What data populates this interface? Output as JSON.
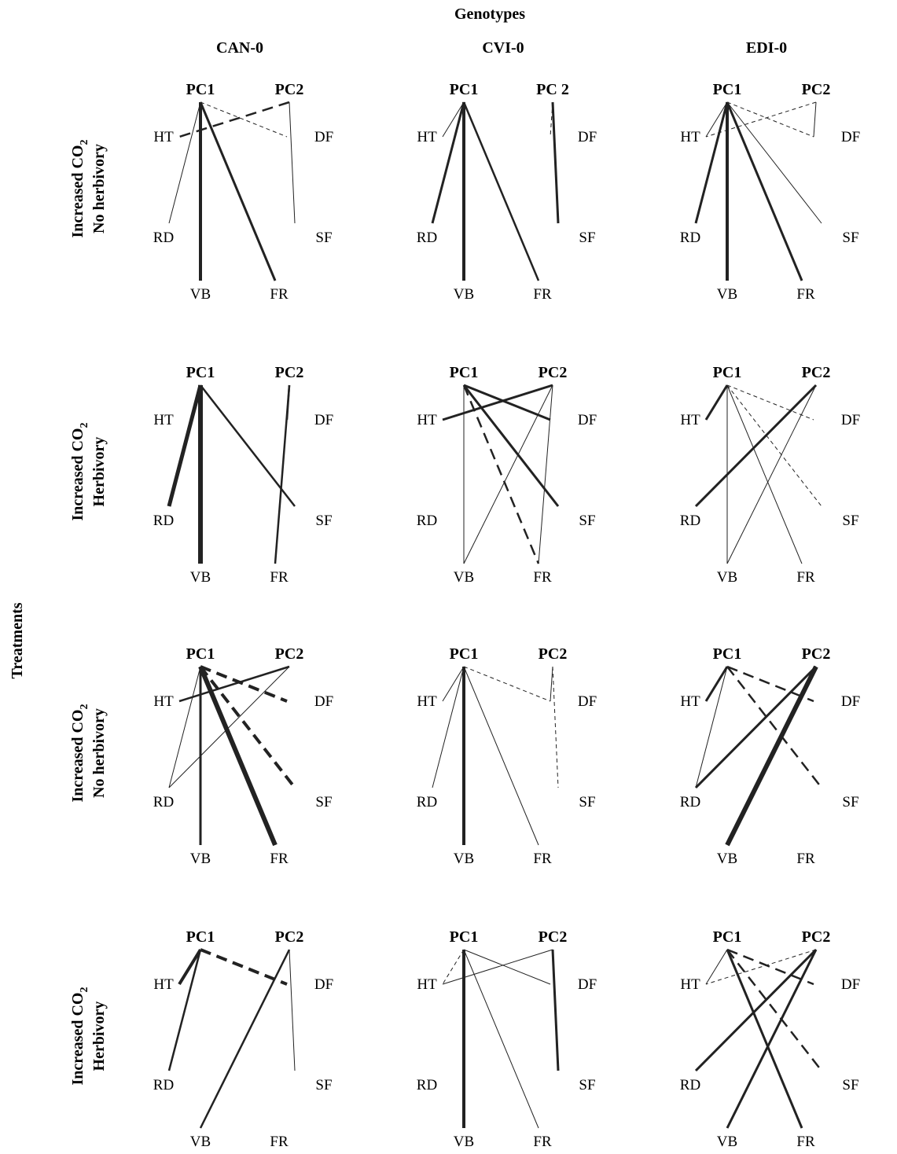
{
  "title": "Genotypes",
  "side_title": "Treatments",
  "genotypes": [
    "CAN-0",
    "CVI-0",
    "EDI-0"
  ],
  "treatments": [
    {
      "line1": "Increased CO",
      "sub": "2",
      "line2": "No herbivory"
    },
    {
      "line1": "Increased CO",
      "sub": "2",
      "line2": "Herbivory"
    },
    {
      "line1": "Increased CO",
      "sub": "2",
      "line2": "No herbivory"
    },
    {
      "line1": "Increased CO",
      "sub": "2",
      "line2": "Herbivory"
    }
  ],
  "colors": {
    "line": "#222222",
    "text": "#000000"
  },
  "panels": [
    {
      "pc_labels": [
        "PC1",
        "PC2"
      ],
      "traits": [
        "HT",
        "DF",
        "RD",
        "SF",
        "VB",
        "FR"
      ],
      "links": [
        {
          "pc": "PC1",
          "trait": "RD",
          "w": 1,
          "dash": false
        },
        {
          "pc": "PC1",
          "trait": "VB",
          "w": 4,
          "dash": false
        },
        {
          "pc": "PC1",
          "trait": "FR",
          "w": 3,
          "dash": false
        },
        {
          "pc": "PC1",
          "trait": "DF",
          "w": 1,
          "dash": true
        },
        {
          "pc": "PC2",
          "trait": "HT",
          "w": 2.5,
          "dash": true
        },
        {
          "pc": "PC2",
          "trait": "SF",
          "w": 1,
          "dash": false
        }
      ]
    },
    {
      "pc_labels": [
        "PC1",
        "PC 2"
      ],
      "traits": [
        "HT",
        "DF",
        "RD",
        "SF",
        "VB",
        "FR"
      ],
      "links": [
        {
          "pc": "PC1",
          "trait": "HT",
          "w": 1,
          "dash": false
        },
        {
          "pc": "PC1",
          "trait": "RD",
          "w": 3,
          "dash": false
        },
        {
          "pc": "PC1",
          "trait": "VB",
          "w": 4,
          "dash": false
        },
        {
          "pc": "PC1",
          "trait": "FR",
          "w": 2.5,
          "dash": false
        },
        {
          "pc": "PC2",
          "trait": "DF",
          "w": 1,
          "dash": true
        },
        {
          "pc": "PC2",
          "trait": "SF",
          "w": 3,
          "dash": false
        }
      ]
    },
    {
      "pc_labels": [
        "PC1",
        "PC2"
      ],
      "traits": [
        "HT",
        "DF",
        "RD",
        "SF",
        "VB",
        "FR"
      ],
      "links": [
        {
          "pc": "PC1",
          "trait": "HT",
          "w": 1,
          "dash": false
        },
        {
          "pc": "PC1",
          "trait": "RD",
          "w": 3,
          "dash": false
        },
        {
          "pc": "PC1",
          "trait": "VB",
          "w": 4,
          "dash": false
        },
        {
          "pc": "PC1",
          "trait": "FR",
          "w": 3,
          "dash": false
        },
        {
          "pc": "PC1",
          "trait": "SF",
          "w": 1,
          "dash": false
        },
        {
          "pc": "PC1",
          "trait": "DF",
          "w": 1,
          "dash": true
        },
        {
          "pc": "PC2",
          "trait": "HT",
          "w": 1,
          "dash": true
        },
        {
          "pc": "PC2",
          "trait": "DF",
          "w": 1,
          "dash": false
        }
      ]
    },
    {
      "pc_labels": [
        "PC1",
        "PC2"
      ],
      "traits": [
        "HT",
        "DF",
        "RD",
        "SF",
        "VB",
        "FR"
      ],
      "links": [
        {
          "pc": "PC1",
          "trait": "RD",
          "w": 5,
          "dash": false
        },
        {
          "pc": "PC1",
          "trait": "VB",
          "w": 6,
          "dash": false
        },
        {
          "pc": "PC1",
          "trait": "SF",
          "w": 2.5,
          "dash": false
        },
        {
          "pc": "PC2",
          "trait": "DF",
          "w": 2.5,
          "dash": false
        },
        {
          "pc": "PC2",
          "trait": "FR",
          "w": 2.5,
          "dash": false
        }
      ]
    },
    {
      "pc_labels": [
        "PC1",
        "PC2"
      ],
      "traits": [
        "HT",
        "DF",
        "RD",
        "SF",
        "VB",
        "FR"
      ],
      "links": [
        {
          "pc": "PC1",
          "trait": "VB",
          "w": 1,
          "dash": false
        },
        {
          "pc": "PC1",
          "trait": "DF",
          "w": 3,
          "dash": false
        },
        {
          "pc": "PC1",
          "trait": "SF",
          "w": 3,
          "dash": false
        },
        {
          "pc": "PC1",
          "trait": "FR",
          "w": 2.5,
          "dash": true
        },
        {
          "pc": "PC2",
          "trait": "HT",
          "w": 3,
          "dash": false
        },
        {
          "pc": "PC2",
          "trait": "VB",
          "w": 1,
          "dash": false
        },
        {
          "pc": "PC2",
          "trait": "FR",
          "w": 1,
          "dash": false
        }
      ]
    },
    {
      "pc_labels": [
        "PC1",
        "PC2"
      ],
      "traits": [
        "HT",
        "DF",
        "RD",
        "SF",
        "VB",
        "FR"
      ],
      "links": [
        {
          "pc": "PC1",
          "trait": "HT",
          "w": 3,
          "dash": false
        },
        {
          "pc": "PC1",
          "trait": "VB",
          "w": 1,
          "dash": false
        },
        {
          "pc": "PC1",
          "trait": "FR",
          "w": 1,
          "dash": false
        },
        {
          "pc": "PC1",
          "trait": "DF",
          "w": 1,
          "dash": true
        },
        {
          "pc": "PC1",
          "trait": "SF",
          "w": 1,
          "dash": true
        },
        {
          "pc": "PC2",
          "trait": "RD",
          "w": 3,
          "dash": false
        },
        {
          "pc": "PC2",
          "trait": "VB",
          "w": 1,
          "dash": false
        }
      ]
    },
    {
      "pc_labels": [
        "PC1",
        "PC2"
      ],
      "traits": [
        "HT",
        "DF",
        "RD",
        "SF",
        "VB",
        "FR"
      ],
      "links": [
        {
          "pc": "PC1",
          "trait": "RD",
          "w": 1,
          "dash": false
        },
        {
          "pc": "PC1",
          "trait": "VB",
          "w": 3,
          "dash": false
        },
        {
          "pc": "PC1",
          "trait": "FR",
          "w": 6,
          "dash": false
        },
        {
          "pc": "PC1",
          "trait": "DF",
          "w": 4,
          "dash": true
        },
        {
          "pc": "PC1",
          "trait": "SF",
          "w": 4,
          "dash": true
        },
        {
          "pc": "PC2",
          "trait": "HT",
          "w": 2.5,
          "dash": false
        },
        {
          "pc": "PC2",
          "trait": "RD",
          "w": 1,
          "dash": false
        }
      ]
    },
    {
      "pc_labels": [
        "PC1",
        "PC2"
      ],
      "traits": [
        "HT",
        "DF",
        "RD",
        "SF",
        "VB",
        "FR"
      ],
      "links": [
        {
          "pc": "PC1",
          "trait": "HT",
          "w": 1,
          "dash": false
        },
        {
          "pc": "PC1",
          "trait": "RD",
          "w": 1,
          "dash": false
        },
        {
          "pc": "PC1",
          "trait": "VB",
          "w": 4,
          "dash": false
        },
        {
          "pc": "PC1",
          "trait": "FR",
          "w": 1,
          "dash": false
        },
        {
          "pc": "PC1",
          "trait": "DF",
          "w": 1,
          "dash": true
        },
        {
          "pc": "PC2",
          "trait": "DF",
          "w": 1,
          "dash": false
        },
        {
          "pc": "PC2",
          "trait": "SF",
          "w": 1,
          "dash": true
        }
      ]
    },
    {
      "pc_labels": [
        "PC1",
        "PC2"
      ],
      "traits": [
        "HT",
        "DF",
        "RD",
        "SF",
        "VB",
        "FR"
      ],
      "links": [
        {
          "pc": "PC1",
          "trait": "HT",
          "w": 3,
          "dash": false
        },
        {
          "pc": "PC1",
          "trait": "RD",
          "w": 1,
          "dash": false
        },
        {
          "pc": "PC1",
          "trait": "DF",
          "w": 2.5,
          "dash": true
        },
        {
          "pc": "PC1",
          "trait": "SF",
          "w": 2.5,
          "dash": true
        },
        {
          "pc": "PC2",
          "trait": "RD",
          "w": 3,
          "dash": false
        },
        {
          "pc": "PC2",
          "trait": "VB",
          "w": 6,
          "dash": false
        }
      ]
    },
    {
      "pc_labels": [
        "PC1",
        "PC2"
      ],
      "traits": [
        "HT",
        "DF",
        "RD",
        "SF",
        "VB",
        "FR"
      ],
      "links": [
        {
          "pc": "PC1",
          "trait": "HT",
          "w": 4,
          "dash": false
        },
        {
          "pc": "PC1",
          "trait": "RD",
          "w": 2.5,
          "dash": false
        },
        {
          "pc": "PC1",
          "trait": "DF",
          "w": 4,
          "dash": true
        },
        {
          "pc": "PC2",
          "trait": "VB",
          "w": 2.5,
          "dash": false
        },
        {
          "pc": "PC2",
          "trait": "SF",
          "w": 1,
          "dash": false
        }
      ]
    },
    {
      "pc_labels": [
        "PC1",
        "PC2"
      ],
      "traits": [
        "HT",
        "DF",
        "RD",
        "SF",
        "VB",
        "FR"
      ],
      "links": [
        {
          "pc": "PC1",
          "trait": "HT",
          "w": 1,
          "dash": true
        },
        {
          "pc": "PC1",
          "trait": "VB",
          "w": 4,
          "dash": false
        },
        {
          "pc": "PC1",
          "trait": "FR",
          "w": 1,
          "dash": false
        },
        {
          "pc": "PC1",
          "trait": "DF",
          "w": 1,
          "dash": false
        },
        {
          "pc": "PC2",
          "trait": "HT",
          "w": 1,
          "dash": false
        },
        {
          "pc": "PC2",
          "trait": "SF",
          "w": 3,
          "dash": false
        }
      ]
    },
    {
      "pc_labels": [
        "PC1",
        "PC2"
      ],
      "traits": [
        "HT",
        "DF",
        "RD",
        "SF",
        "VB",
        "FR"
      ],
      "links": [
        {
          "pc": "PC1",
          "trait": "HT",
          "w": 1,
          "dash": false
        },
        {
          "pc": "PC1",
          "trait": "FR",
          "w": 3,
          "dash": false
        },
        {
          "pc": "PC1",
          "trait": "DF",
          "w": 2.5,
          "dash": true
        },
        {
          "pc": "PC1",
          "trait": "SF",
          "w": 2.5,
          "dash": true
        },
        {
          "pc": "PC2",
          "trait": "HT",
          "w": 1,
          "dash": true
        },
        {
          "pc": "PC2",
          "trait": "RD",
          "w": 3,
          "dash": false
        },
        {
          "pc": "PC2",
          "trait": "VB",
          "w": 3,
          "dash": false
        }
      ]
    }
  ]
}
